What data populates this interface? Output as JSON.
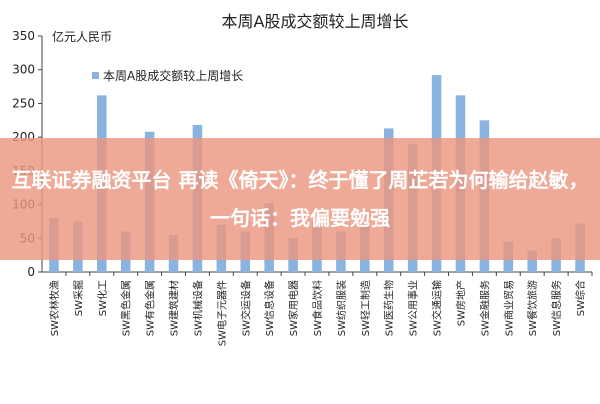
{
  "chart_data": {
    "type": "bar",
    "title": "本周A股成交额较上周增长",
    "ylabel": "亿元人民币",
    "xlabel": "",
    "ylim": [
      0,
      350
    ],
    "yticks": [
      0,
      50,
      100,
      150,
      200,
      250,
      300,
      350
    ],
    "legend_position": "top-left",
    "grid": false,
    "categories": [
      "SW农林牧渔",
      "SW采掘",
      "SW化工",
      "SW黑色金属",
      "SW有色金属",
      "SW建筑建材",
      "SW机械设备",
      "SW电子元器件",
      "SW交运设备",
      "SW信息设备",
      "SW家用电器",
      "SW食品饮料",
      "SW纺织服装",
      "SW轻工制造",
      "SW医药生物",
      "SW公用事业",
      "SW交通运输",
      "SW房地产",
      "SW金融服务",
      "SW商业贸易",
      "SW餐饮旅游",
      "SW信息服务",
      "SW综合"
    ],
    "series": [
      {
        "name": "本周A股成交额较上周增长",
        "color": "#8ab4df",
        "values": [
          80,
          75,
          262,
          60,
          208,
          55,
          218,
          70,
          60,
          102,
          50,
          72,
          60,
          68,
          213,
          190,
          292,
          262,
          225,
          45,
          32,
          50,
          72
        ]
      }
    ]
  },
  "overlay": {
    "headline": "互联证券融资平台 再读《倚天》：终于懂了周芷若为何输给赵敏，一句话：我偏要勉强"
  }
}
